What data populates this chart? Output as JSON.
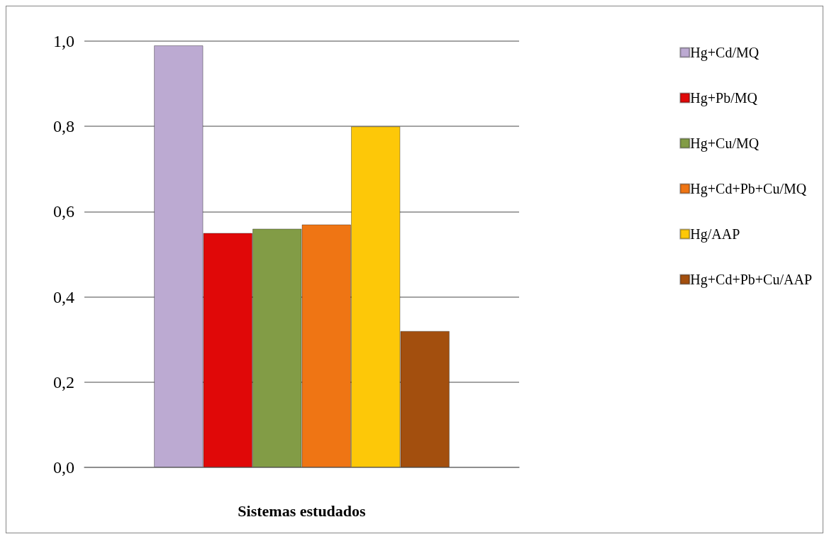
{
  "chart_data": {
    "type": "bar",
    "xlabel": "Sistemas estudados",
    "categories": [
      null
    ],
    "series": [
      {
        "name": "Hg+Cd/MQ",
        "color": "#bcaad2",
        "values": [
          0.99
        ]
      },
      {
        "name": "Hg+Pb/MQ",
        "color": "#e00808",
        "values": [
          0.55
        ]
      },
      {
        "name": "Hg+Cu/MQ",
        "color": "#829c46",
        "values": [
          0.56
        ]
      },
      {
        "name": "Hg+Cd+Pb+Cu/MQ",
        "color": "#ef7514",
        "values": [
          0.57
        ]
      },
      {
        "name": "Hg/AAP",
        "color": "#fdc808",
        "values": [
          0.8
        ]
      },
      {
        "name": "Hg+Cd+Pb+Cu/AAP",
        "color": "#a34f0e",
        "values": [
          0.32
        ]
      }
    ],
    "ylim": [
      0,
      1
    ],
    "yticks": [
      {
        "value": 0,
        "label": "0,0"
      },
      {
        "value": 0.2,
        "label": "0,2"
      },
      {
        "value": 0.4,
        "label": "0,4"
      },
      {
        "value": 0.6,
        "label": "0,6"
      },
      {
        "value": 0.8,
        "label": "0,8"
      },
      {
        "value": 1,
        "label": "1,0"
      }
    ],
    "grid": "y",
    "legend": "right"
  }
}
